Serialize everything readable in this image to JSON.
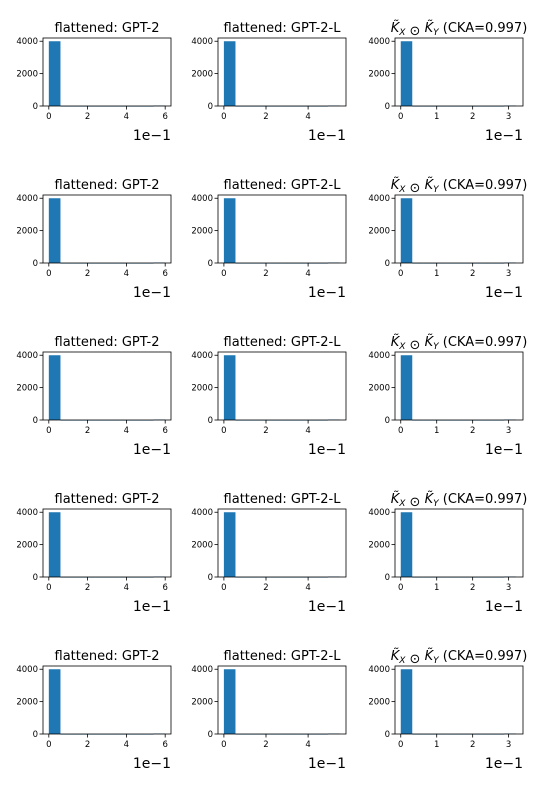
{
  "bar_color": "#1f77b4",
  "chart_data": [
    {
      "type": "bar",
      "title": "flattened: GPT-2",
      "x_ticks": [
        0,
        2,
        4,
        6
      ],
      "x_range": [
        -0.3,
        6.3
      ],
      "y_ticks": [
        0,
        2000,
        4000
      ],
      "y_range": [
        0,
        4200
      ],
      "offset_text": "1e−1",
      "bins": [
        {
          "x0": 0,
          "x1": 0.6,
          "count": 4000
        },
        {
          "x0": 0.6,
          "x1": 1.2,
          "count": 2
        },
        {
          "x0": 1.2,
          "x1": 1.8,
          "count": 2
        },
        {
          "x0": 1.8,
          "x1": 2.4,
          "count": 2
        },
        {
          "x0": 2.4,
          "x1": 3.0,
          "count": 2
        },
        {
          "x0": 3.0,
          "x1": 3.6,
          "count": 2
        },
        {
          "x0": 3.6,
          "x1": 4.2,
          "count": 2
        },
        {
          "x0": 4.2,
          "x1": 4.8,
          "count": 2
        },
        {
          "x0": 4.8,
          "x1": 5.4,
          "count": 2
        },
        {
          "x0": 5.4,
          "x1": 6.0,
          "count": 30
        }
      ]
    },
    {
      "type": "bar",
      "title": "flattened: GPT-2-L",
      "x_ticks": [
        0,
        2,
        4
      ],
      "x_range": [
        -0.28,
        5.8
      ],
      "y_ticks": [
        0,
        2000,
        4000
      ],
      "y_range": [
        0,
        4200
      ],
      "offset_text": "1e−1",
      "bins": [
        {
          "x0": 0,
          "x1": 0.55,
          "count": 4000
        },
        {
          "x0": 0.55,
          "x1": 1.1,
          "count": 2
        },
        {
          "x0": 1.1,
          "x1": 1.65,
          "count": 2
        },
        {
          "x0": 1.65,
          "x1": 2.2,
          "count": 2
        },
        {
          "x0": 2.2,
          "x1": 2.75,
          "count": 2
        },
        {
          "x0": 2.75,
          "x1": 3.3,
          "count": 2
        },
        {
          "x0": 3.3,
          "x1": 3.85,
          "count": 2
        },
        {
          "x0": 3.85,
          "x1": 4.4,
          "count": 2
        },
        {
          "x0": 4.4,
          "x1": 4.95,
          "count": 2
        },
        {
          "x0": 4.95,
          "x1": 5.5,
          "count": 30
        }
      ]
    },
    {
      "type": "bar",
      "title": "K̃X ⊙ K̃Y (CKA=0.997)",
      "title_math": {
        "a": "K̃",
        "a_sub": "X",
        "op": " ⊙ ",
        "b": "K̃",
        "b_sub": "Y",
        "rest": " (CKA=0.997)"
      },
      "x_ticks": [
        0,
        1,
        2,
        3
      ],
      "x_range": [
        -0.16,
        3.4
      ],
      "y_ticks": [
        0,
        2000,
        4000
      ],
      "y_range": [
        0,
        4200
      ],
      "offset_text": "1e−1",
      "bins": [
        {
          "x0": 0,
          "x1": 0.32,
          "count": 4000
        },
        {
          "x0": 0.32,
          "x1": 0.64,
          "count": 2
        },
        {
          "x0": 0.64,
          "x1": 0.96,
          "count": 2
        },
        {
          "x0": 0.96,
          "x1": 1.28,
          "count": 2
        },
        {
          "x0": 1.28,
          "x1": 1.6,
          "count": 2
        },
        {
          "x0": 1.6,
          "x1": 1.92,
          "count": 2
        },
        {
          "x0": 1.92,
          "x1": 2.24,
          "count": 2
        },
        {
          "x0": 2.24,
          "x1": 2.56,
          "count": 2
        },
        {
          "x0": 2.56,
          "x1": 2.88,
          "count": 2
        },
        {
          "x0": 2.88,
          "x1": 3.2,
          "count": 30
        }
      ]
    },
    {
      "type": "bar",
      "title": "flattened: GPT-2",
      "x_ticks": [
        0,
        2,
        4,
        6
      ],
      "x_range": [
        -0.3,
        6.3
      ],
      "y_ticks": [
        0,
        2000,
        4000
      ],
      "y_range": [
        0,
        4200
      ],
      "offset_text": "1e−1",
      "bins": [
        {
          "x0": 0,
          "x1": 0.6,
          "count": 4000
        },
        {
          "x0": 0.6,
          "x1": 1.2,
          "count": 2
        },
        {
          "x0": 1.2,
          "x1": 1.8,
          "count": 2
        },
        {
          "x0": 1.8,
          "x1": 2.4,
          "count": 2
        },
        {
          "x0": 2.4,
          "x1": 3.0,
          "count": 2
        },
        {
          "x0": 3.0,
          "x1": 3.6,
          "count": 2
        },
        {
          "x0": 3.6,
          "x1": 4.2,
          "count": 2
        },
        {
          "x0": 4.2,
          "x1": 4.8,
          "count": 2
        },
        {
          "x0": 4.8,
          "x1": 5.4,
          "count": 2
        },
        {
          "x0": 5.4,
          "x1": 6.0,
          "count": 30
        }
      ]
    },
    {
      "type": "bar",
      "title": "flattened: GPT-2-L",
      "x_ticks": [
        0,
        2,
        4
      ],
      "x_range": [
        -0.28,
        5.8
      ],
      "y_ticks": [
        0,
        2000,
        4000
      ],
      "y_range": [
        0,
        4200
      ],
      "offset_text": "1e−1",
      "bins": [
        {
          "x0": 0,
          "x1": 0.55,
          "count": 4000
        },
        {
          "x0": 0.55,
          "x1": 1.1,
          "count": 2
        },
        {
          "x0": 1.1,
          "x1": 1.65,
          "count": 2
        },
        {
          "x0": 1.65,
          "x1": 2.2,
          "count": 2
        },
        {
          "x0": 2.2,
          "x1": 2.75,
          "count": 2
        },
        {
          "x0": 2.75,
          "x1": 3.3,
          "count": 2
        },
        {
          "x0": 3.3,
          "x1": 3.85,
          "count": 2
        },
        {
          "x0": 3.85,
          "x1": 4.4,
          "count": 2
        },
        {
          "x0": 4.4,
          "x1": 4.95,
          "count": 2
        },
        {
          "x0": 4.95,
          "x1": 5.5,
          "count": 30
        }
      ]
    },
    {
      "type": "bar",
      "title": "K̃X ⊙ K̃Y (CKA=0.997)",
      "title_math": {
        "a": "K̃",
        "a_sub": "X",
        "op": " ⊙ ",
        "b": "K̃",
        "b_sub": "Y",
        "rest": " (CKA=0.997)"
      },
      "x_ticks": [
        0,
        1,
        2,
        3
      ],
      "x_range": [
        -0.16,
        3.4
      ],
      "y_ticks": [
        0,
        2000,
        4000
      ],
      "y_range": [
        0,
        4200
      ],
      "offset_text": "1e−1",
      "bins": [
        {
          "x0": 0,
          "x1": 0.32,
          "count": 4000
        },
        {
          "x0": 0.32,
          "x1": 0.64,
          "count": 2
        },
        {
          "x0": 0.64,
          "x1": 0.96,
          "count": 2
        },
        {
          "x0": 0.96,
          "x1": 1.28,
          "count": 2
        },
        {
          "x0": 1.28,
          "x1": 1.6,
          "count": 2
        },
        {
          "x0": 1.6,
          "x1": 1.92,
          "count": 2
        },
        {
          "x0": 1.92,
          "x1": 2.24,
          "count": 2
        },
        {
          "x0": 2.24,
          "x1": 2.56,
          "count": 2
        },
        {
          "x0": 2.56,
          "x1": 2.88,
          "count": 2
        },
        {
          "x0": 2.88,
          "x1": 3.2,
          "count": 30
        }
      ]
    },
    {
      "type": "bar",
      "title": "flattened: GPT-2",
      "x_ticks": [
        0,
        2,
        4,
        6
      ],
      "x_range": [
        -0.3,
        6.3
      ],
      "y_ticks": [
        0,
        2000,
        4000
      ],
      "y_range": [
        0,
        4200
      ],
      "offset_text": "1e−1",
      "bins": [
        {
          "x0": 0,
          "x1": 0.6,
          "count": 4000
        },
        {
          "x0": 0.6,
          "x1": 1.2,
          "count": 2
        },
        {
          "x0": 1.2,
          "x1": 1.8,
          "count": 2
        },
        {
          "x0": 1.8,
          "x1": 2.4,
          "count": 2
        },
        {
          "x0": 2.4,
          "x1": 3.0,
          "count": 2
        },
        {
          "x0": 3.0,
          "x1": 3.6,
          "count": 2
        },
        {
          "x0": 3.6,
          "x1": 4.2,
          "count": 2
        },
        {
          "x0": 4.2,
          "x1": 4.8,
          "count": 2
        },
        {
          "x0": 4.8,
          "x1": 5.4,
          "count": 2
        },
        {
          "x0": 5.4,
          "x1": 6.0,
          "count": 30
        }
      ]
    },
    {
      "type": "bar",
      "title": "flattened: GPT-2-L",
      "x_ticks": [
        0,
        2,
        4
      ],
      "x_range": [
        -0.28,
        5.8
      ],
      "y_ticks": [
        0,
        2000,
        4000
      ],
      "y_range": [
        0,
        4200
      ],
      "offset_text": "1e−1",
      "bins": [
        {
          "x0": 0,
          "x1": 0.55,
          "count": 4000
        },
        {
          "x0": 0.55,
          "x1": 1.1,
          "count": 2
        },
        {
          "x0": 1.1,
          "x1": 1.65,
          "count": 2
        },
        {
          "x0": 1.65,
          "x1": 2.2,
          "count": 2
        },
        {
          "x0": 2.2,
          "x1": 2.75,
          "count": 2
        },
        {
          "x0": 2.75,
          "x1": 3.3,
          "count": 2
        },
        {
          "x0": 3.3,
          "x1": 3.85,
          "count": 2
        },
        {
          "x0": 3.85,
          "x1": 4.4,
          "count": 2
        },
        {
          "x0": 4.4,
          "x1": 4.95,
          "count": 2
        },
        {
          "x0": 4.95,
          "x1": 5.5,
          "count": 30
        }
      ]
    },
    {
      "type": "bar",
      "title": "K̃X ⊙ K̃Y (CKA=0.997)",
      "title_math": {
        "a": "K̃",
        "a_sub": "X",
        "op": " ⊙ ",
        "b": "K̃",
        "b_sub": "Y",
        "rest": " (CKA=0.997)"
      },
      "x_ticks": [
        0,
        1,
        2,
        3
      ],
      "x_range": [
        -0.16,
        3.4
      ],
      "y_ticks": [
        0,
        2000,
        4000
      ],
      "y_range": [
        0,
        4200
      ],
      "offset_text": "1e−1",
      "bins": [
        {
          "x0": 0,
          "x1": 0.32,
          "count": 4000
        },
        {
          "x0": 0.32,
          "x1": 0.64,
          "count": 2
        },
        {
          "x0": 0.64,
          "x1": 0.96,
          "count": 2
        },
        {
          "x0": 0.96,
          "x1": 1.28,
          "count": 2
        },
        {
          "x0": 1.28,
          "x1": 1.6,
          "count": 2
        },
        {
          "x0": 1.6,
          "x1": 1.92,
          "count": 2
        },
        {
          "x0": 1.92,
          "x1": 2.24,
          "count": 2
        },
        {
          "x0": 2.24,
          "x1": 2.56,
          "count": 2
        },
        {
          "x0": 2.56,
          "x1": 2.88,
          "count": 2
        },
        {
          "x0": 2.88,
          "x1": 3.2,
          "count": 30
        }
      ]
    },
    {
      "type": "bar",
      "title": "flattened: GPT-2",
      "x_ticks": [
        0,
        2,
        4,
        6
      ],
      "x_range": [
        -0.3,
        6.3
      ],
      "y_ticks": [
        0,
        2000,
        4000
      ],
      "y_range": [
        0,
        4200
      ],
      "offset_text": "1e−1",
      "bins": [
        {
          "x0": 0,
          "x1": 0.6,
          "count": 4000
        },
        {
          "x0": 0.6,
          "x1": 1.2,
          "count": 2
        },
        {
          "x0": 1.2,
          "x1": 1.8,
          "count": 2
        },
        {
          "x0": 1.8,
          "x1": 2.4,
          "count": 2
        },
        {
          "x0": 2.4,
          "x1": 3.0,
          "count": 2
        },
        {
          "x0": 3.0,
          "x1": 3.6,
          "count": 2
        },
        {
          "x0": 3.6,
          "x1": 4.2,
          "count": 2
        },
        {
          "x0": 4.2,
          "x1": 4.8,
          "count": 2
        },
        {
          "x0": 4.8,
          "x1": 5.4,
          "count": 2
        },
        {
          "x0": 5.4,
          "x1": 6.0,
          "count": 30
        }
      ]
    },
    {
      "type": "bar",
      "title": "flattened: GPT-2-L",
      "x_ticks": [
        0,
        2,
        4
      ],
      "x_range": [
        -0.28,
        5.8
      ],
      "y_ticks": [
        0,
        2000,
        4000
      ],
      "y_range": [
        0,
        4200
      ],
      "offset_text": "1e−1",
      "bins": [
        {
          "x0": 0,
          "x1": 0.55,
          "count": 4000
        },
        {
          "x0": 0.55,
          "x1": 1.1,
          "count": 2
        },
        {
          "x0": 1.1,
          "x1": 1.65,
          "count": 2
        },
        {
          "x0": 1.65,
          "x1": 2.2,
          "count": 2
        },
        {
          "x0": 2.2,
          "x1": 2.75,
          "count": 2
        },
        {
          "x0": 2.75,
          "x1": 3.3,
          "count": 2
        },
        {
          "x0": 3.3,
          "x1": 3.85,
          "count": 2
        },
        {
          "x0": 3.85,
          "x1": 4.4,
          "count": 2
        },
        {
          "x0": 4.4,
          "x1": 4.95,
          "count": 2
        },
        {
          "x0": 4.95,
          "x1": 5.5,
          "count": 30
        }
      ]
    },
    {
      "type": "bar",
      "title": "K̃X ⊙ K̃Y (CKA=0.997)",
      "title_math": {
        "a": "K̃",
        "a_sub": "X",
        "op": " ⊙ ",
        "b": "K̃",
        "b_sub": "Y",
        "rest": " (CKA=0.997)"
      },
      "x_ticks": [
        0,
        1,
        2,
        3
      ],
      "x_range": [
        -0.16,
        3.4
      ],
      "y_ticks": [
        0,
        2000,
        4000
      ],
      "y_range": [
        0,
        4200
      ],
      "offset_text": "1e−1",
      "bins": [
        {
          "x0": 0,
          "x1": 0.32,
          "count": 4000
        },
        {
          "x0": 0.32,
          "x1": 0.64,
          "count": 2
        },
        {
          "x0": 0.64,
          "x1": 0.96,
          "count": 2
        },
        {
          "x0": 0.96,
          "x1": 1.28,
          "count": 2
        },
        {
          "x0": 1.28,
          "x1": 1.6,
          "count": 2
        },
        {
          "x0": 1.6,
          "x1": 1.92,
          "count": 2
        },
        {
          "x0": 1.92,
          "x1": 2.24,
          "count": 2
        },
        {
          "x0": 2.24,
          "x1": 2.56,
          "count": 2
        },
        {
          "x0": 2.56,
          "x1": 2.88,
          "count": 2
        },
        {
          "x0": 2.88,
          "x1": 3.2,
          "count": 30
        }
      ]
    },
    {
      "type": "bar",
      "title": "flattened: GPT-2",
      "x_ticks": [
        0,
        2,
        4,
        6
      ],
      "x_range": [
        -0.3,
        6.3
      ],
      "y_ticks": [
        0,
        2000,
        4000
      ],
      "y_range": [
        0,
        4200
      ],
      "offset_text": "1e−1",
      "bins": [
        {
          "x0": 0,
          "x1": 0.6,
          "count": 4000
        },
        {
          "x0": 0.6,
          "x1": 1.2,
          "count": 2
        },
        {
          "x0": 1.2,
          "x1": 1.8,
          "count": 2
        },
        {
          "x0": 1.8,
          "x1": 2.4,
          "count": 2
        },
        {
          "x0": 2.4,
          "x1": 3.0,
          "count": 2
        },
        {
          "x0": 3.0,
          "x1": 3.6,
          "count": 2
        },
        {
          "x0": 3.6,
          "x1": 4.2,
          "count": 2
        },
        {
          "x0": 4.2,
          "x1": 4.8,
          "count": 2
        },
        {
          "x0": 4.8,
          "x1": 5.4,
          "count": 2
        },
        {
          "x0": 5.4,
          "x1": 6.0,
          "count": 30
        }
      ]
    },
    {
      "type": "bar",
      "title": "flattened: GPT-2-L",
      "x_ticks": [
        0,
        2,
        4
      ],
      "x_range": [
        -0.28,
        5.8
      ],
      "y_ticks": [
        0,
        2000,
        4000
      ],
      "y_range": [
        0,
        4200
      ],
      "offset_text": "1e−1",
      "bins": [
        {
          "x0": 0,
          "x1": 0.55,
          "count": 4000
        },
        {
          "x0": 0.55,
          "x1": 1.1,
          "count": 2
        },
        {
          "x0": 1.1,
          "x1": 1.65,
          "count": 2
        },
        {
          "x0": 1.65,
          "x1": 2.2,
          "count": 2
        },
        {
          "x0": 2.2,
          "x1": 2.75,
          "count": 2
        },
        {
          "x0": 2.75,
          "x1": 3.3,
          "count": 2
        },
        {
          "x0": 3.3,
          "x1": 3.85,
          "count": 2
        },
        {
          "x0": 3.85,
          "x1": 4.4,
          "count": 2
        },
        {
          "x0": 4.4,
          "x1": 4.95,
          "count": 2
        },
        {
          "x0": 4.95,
          "x1": 5.5,
          "count": 30
        }
      ]
    },
    {
      "type": "bar",
      "title": "K̃X ⊙ K̃Y (CKA=0.997)",
      "title_math": {
        "a": "K̃",
        "a_sub": "X",
        "op": " ⊙ ",
        "b": "K̃",
        "b_sub": "Y",
        "rest": " (CKA=0.997)"
      },
      "x_ticks": [
        0,
        1,
        2,
        3
      ],
      "x_range": [
        -0.16,
        3.4
      ],
      "y_ticks": [
        0,
        2000,
        4000
      ],
      "y_range": [
        0,
        4200
      ],
      "offset_text": "1e−1",
      "bins": [
        {
          "x0": 0,
          "x1": 0.32,
          "count": 4000
        },
        {
          "x0": 0.32,
          "x1": 0.64,
          "count": 2
        },
        {
          "x0": 0.64,
          "x1": 0.96,
          "count": 2
        },
        {
          "x0": 0.96,
          "x1": 1.28,
          "count": 2
        },
        {
          "x0": 1.28,
          "x1": 1.6,
          "count": 2
        },
        {
          "x0": 1.6,
          "x1": 1.92,
          "count": 2
        },
        {
          "x0": 1.92,
          "x1": 2.24,
          "count": 2
        },
        {
          "x0": 2.24,
          "x1": 2.56,
          "count": 2
        },
        {
          "x0": 2.56,
          "x1": 2.88,
          "count": 2
        },
        {
          "x0": 2.88,
          "x1": 3.2,
          "count": 30
        }
      ]
    }
  ]
}
